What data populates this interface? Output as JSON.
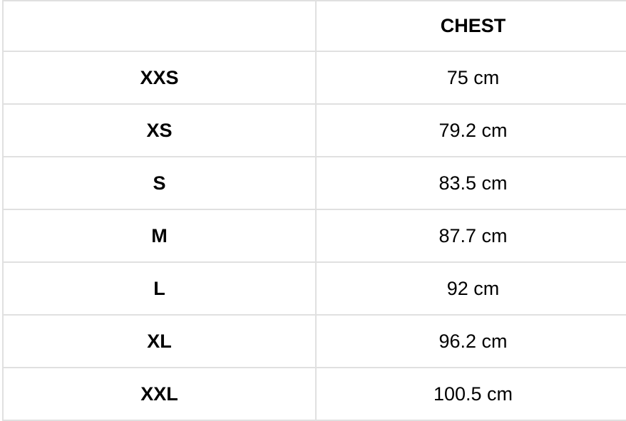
{
  "table": {
    "header": [
      "CHEST"
    ],
    "rows": [
      [
        "XXS",
        "75 cm"
      ],
      [
        "XS",
        "79.2 cm"
      ],
      [
        "S",
        "83.5 cm"
      ],
      [
        "M",
        "87.7 cm"
      ],
      [
        "L",
        "92 cm"
      ],
      [
        "XL",
        "96.2 cm"
      ],
      [
        "XXL",
        "100.5 cm"
      ]
    ]
  }
}
